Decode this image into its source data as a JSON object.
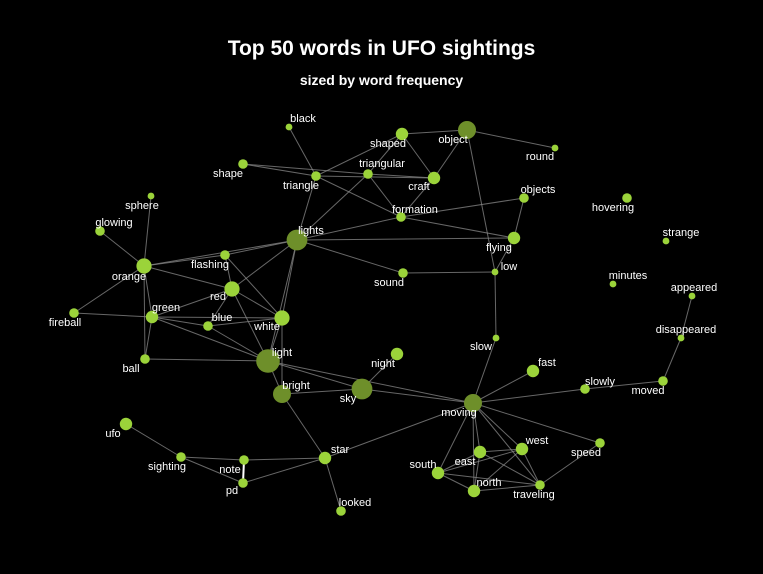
{
  "title": "Top 50 words in UFO sightings",
  "subtitle": "sized by word frequency",
  "colors": {
    "background": "#000000",
    "node_fill": "#9bd33a",
    "node_fill_large": "#6e8f2a",
    "edge": "#8a8a8a",
    "edge_strong": "#ffffff",
    "label": "#ffffff"
  },
  "nodes": [
    {
      "id": "black",
      "label": "black",
      "freq": 1
    },
    {
      "id": "shaped",
      "label": "shaped",
      "freq": 3
    },
    {
      "id": "object",
      "label": "object",
      "freq": 5
    },
    {
      "id": "round",
      "label": "round",
      "freq": 1
    },
    {
      "id": "shape",
      "label": "shape",
      "freq": 2
    },
    {
      "id": "triangular",
      "label": "triangular",
      "freq": 2
    },
    {
      "id": "triangle",
      "label": "triangle",
      "freq": 2
    },
    {
      "id": "craft",
      "label": "craft",
      "freq": 3
    },
    {
      "id": "objects",
      "label": "objects",
      "freq": 2
    },
    {
      "id": "sphere",
      "label": "sphere",
      "freq": 1
    },
    {
      "id": "hovering",
      "label": "hovering",
      "freq": 2
    },
    {
      "id": "formation",
      "label": "formation",
      "freq": 2
    },
    {
      "id": "glowing",
      "label": "glowing",
      "freq": 2
    },
    {
      "id": "lights",
      "label": "lights",
      "freq": 6
    },
    {
      "id": "flying",
      "label": "flying",
      "freq": 3
    },
    {
      "id": "strange",
      "label": "strange",
      "freq": 1
    },
    {
      "id": "flashing",
      "label": "flashing",
      "freq": 2
    },
    {
      "id": "orange",
      "label": "orange",
      "freq": 4
    },
    {
      "id": "low",
      "label": "low",
      "freq": 1
    },
    {
      "id": "sound",
      "label": "sound",
      "freq": 2
    },
    {
      "id": "minutes",
      "label": "minutes",
      "freq": 1
    },
    {
      "id": "appeared",
      "label": "appeared",
      "freq": 1
    },
    {
      "id": "red",
      "label": "red",
      "freq": 4
    },
    {
      "id": "fireball",
      "label": "fireball",
      "freq": 2
    },
    {
      "id": "green",
      "label": "green",
      "freq": 3
    },
    {
      "id": "blue",
      "label": "blue",
      "freq": 2
    },
    {
      "id": "white",
      "label": "white",
      "freq": 4
    },
    {
      "id": "disappeared",
      "label": "disappeared",
      "freq": 1
    },
    {
      "id": "slow",
      "label": "slow",
      "freq": 1
    },
    {
      "id": "light",
      "label": "light",
      "freq": 7
    },
    {
      "id": "night",
      "label": "night",
      "freq": 3
    },
    {
      "id": "ball",
      "label": "ball",
      "freq": 2
    },
    {
      "id": "fast",
      "label": "fast",
      "freq": 3
    },
    {
      "id": "bright",
      "label": "bright",
      "freq": 5
    },
    {
      "id": "sky",
      "label": "sky",
      "freq": 6
    },
    {
      "id": "slowly",
      "label": "slowly",
      "freq": 2
    },
    {
      "id": "moved",
      "label": "moved",
      "freq": 2
    },
    {
      "id": "moving",
      "label": "moving",
      "freq": 5
    },
    {
      "id": "ufo",
      "label": "ufo",
      "freq": 3
    },
    {
      "id": "west",
      "label": "west",
      "freq": 3
    },
    {
      "id": "speed",
      "label": "speed",
      "freq": 2
    },
    {
      "id": "star",
      "label": "star",
      "freq": 3
    },
    {
      "id": "sighting",
      "label": "sighting",
      "freq": 2
    },
    {
      "id": "note",
      "label": "note",
      "freq": 2
    },
    {
      "id": "east",
      "label": "east",
      "freq": 3
    },
    {
      "id": "south",
      "label": "south",
      "freq": 3
    },
    {
      "id": "north",
      "label": "north",
      "freq": 3
    },
    {
      "id": "traveling",
      "label": "traveling",
      "freq": 2
    },
    {
      "id": "pd",
      "label": "pd",
      "freq": 2
    },
    {
      "id": "looked",
      "label": "looked",
      "freq": 2
    }
  ],
  "edges": [
    [
      "shaped",
      "object"
    ],
    [
      "object",
      "round"
    ],
    [
      "shaped",
      "craft"
    ],
    [
      "object",
      "craft"
    ],
    [
      "object",
      "low"
    ],
    [
      "shaped",
      "triangular"
    ],
    [
      "shaped",
      "triangle"
    ],
    [
      "black",
      "triangle"
    ],
    [
      "shape",
      "triangle"
    ],
    [
      "shape",
      "triangular"
    ],
    [
      "triangle",
      "craft"
    ],
    [
      "triangular",
      "craft"
    ],
    [
      "triangle",
      "formation"
    ],
    [
      "triangular",
      "formation"
    ],
    [
      "triangle",
      "lights"
    ],
    [
      "triangular",
      "lights"
    ],
    [
      "craft",
      "formation"
    ],
    [
      "formation",
      "objects"
    ],
    [
      "formation",
      "flying"
    ],
    [
      "formation",
      "lights"
    ],
    [
      "objects",
      "flying"
    ],
    [
      "flying",
      "low"
    ],
    [
      "lights",
      "flashing"
    ],
    [
      "lights",
      "orange"
    ],
    [
      "lights",
      "red"
    ],
    [
      "lights",
      "white"
    ],
    [
      "lights",
      "light"
    ],
    [
      "lights",
      "sound"
    ],
    [
      "lights",
      "flying"
    ],
    [
      "sound",
      "low"
    ],
    [
      "low",
      "slow"
    ],
    [
      "slow",
      "moving"
    ],
    [
      "sphere",
      "orange"
    ],
    [
      "glowing",
      "orange"
    ],
    [
      "orange",
      "fireball"
    ],
    [
      "orange",
      "green"
    ],
    [
      "orange",
      "ball"
    ],
    [
      "orange",
      "flashing"
    ],
    [
      "orange",
      "red"
    ],
    [
      "flashing",
      "red"
    ],
    [
      "flashing",
      "white"
    ],
    [
      "red",
      "green"
    ],
    [
      "red",
      "blue"
    ],
    [
      "red",
      "white"
    ],
    [
      "red",
      "light"
    ],
    [
      "green",
      "blue"
    ],
    [
      "green",
      "white"
    ],
    [
      "green",
      "light"
    ],
    [
      "green",
      "fireball"
    ],
    [
      "green",
      "ball"
    ],
    [
      "blue",
      "white"
    ],
    [
      "blue",
      "light"
    ],
    [
      "white",
      "light"
    ],
    [
      "white",
      "bright"
    ],
    [
      "ball",
      "light"
    ],
    [
      "light",
      "bright"
    ],
    [
      "light",
      "sky"
    ],
    [
      "light",
      "moving"
    ],
    [
      "bright",
      "sky"
    ],
    [
      "bright",
      "star"
    ],
    [
      "night",
      "sky"
    ],
    [
      "sky",
      "moving"
    ],
    [
      "star",
      "moving"
    ],
    [
      "moving",
      "fast"
    ],
    [
      "moving",
      "slowly"
    ],
    [
      "slowly",
      "moved"
    ],
    [
      "moved",
      "disappeared"
    ],
    [
      "disappeared",
      "appeared"
    ],
    [
      "moving",
      "speed"
    ],
    [
      "moving",
      "west"
    ],
    [
      "moving",
      "east"
    ],
    [
      "moving",
      "south"
    ],
    [
      "moving",
      "north"
    ],
    [
      "moving",
      "traveling"
    ],
    [
      "east",
      "west"
    ],
    [
      "east",
      "south"
    ],
    [
      "east",
      "north"
    ],
    [
      "east",
      "traveling"
    ],
    [
      "west",
      "south"
    ],
    [
      "west",
      "north"
    ],
    [
      "west",
      "traveling"
    ],
    [
      "south",
      "north"
    ],
    [
      "south",
      "traveling"
    ],
    [
      "north",
      "traveling"
    ],
    [
      "speed",
      "traveling"
    ],
    [
      "ufo",
      "sighting"
    ],
    [
      "sighting",
      "note"
    ],
    [
      "sighting",
      "pd"
    ],
    [
      "note",
      "star"
    ],
    [
      "pd",
      "star"
    ],
    [
      "star",
      "looked"
    ]
  ],
  "strong_edges": [
    [
      "note",
      "pd"
    ]
  ]
}
